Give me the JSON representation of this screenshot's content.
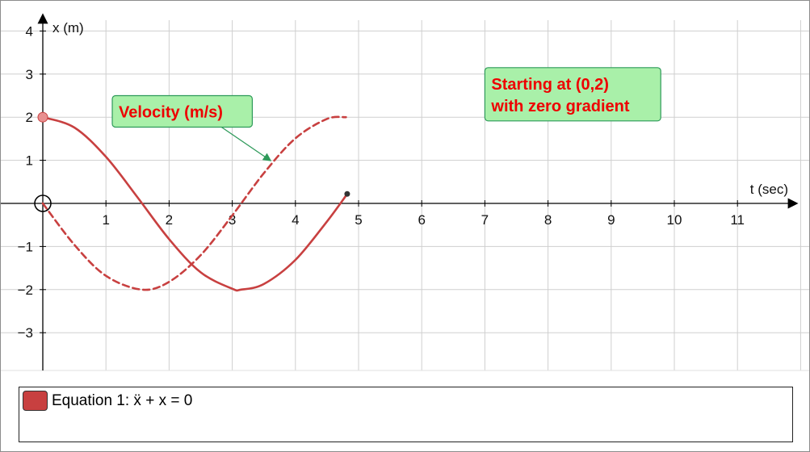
{
  "chart_data": {
    "type": "line",
    "xlabel": "t (sec)",
    "ylabel": "x (m)",
    "xlim": [
      -0.5,
      12
    ],
    "ylim": [
      -3.8,
      4.2
    ],
    "x_ticks": [
      1,
      2,
      3,
      4,
      5,
      6,
      7,
      8,
      9,
      10,
      11
    ],
    "y_ticks": [
      4,
      3,
      2,
      1,
      -1,
      -2,
      -3
    ],
    "y_tick_labels": [
      "4",
      "3",
      "2",
      "1",
      "−1",
      "−2",
      "−3"
    ],
    "grid": true,
    "series": [
      {
        "style": "solid",
        "color": "#c84040",
        "x": [
          0,
          0.5,
          1,
          1.5,
          2,
          2.5,
          3,
          3.14,
          3.5,
          4,
          4.5,
          4.82
        ],
        "y": [
          2,
          1.76,
          1.08,
          0.14,
          -0.83,
          -1.6,
          -1.98,
          -2,
          -1.87,
          -1.31,
          -0.42,
          0.22
        ]
      },
      {
        "style": "dashed",
        "color": "#c84040",
        "x": [
          0,
          0.5,
          1,
          1.57,
          2,
          2.5,
          3,
          3.5,
          4,
          4.5,
          4.8
        ],
        "y": [
          0,
          -0.96,
          -1.68,
          -2,
          -1.82,
          -1.2,
          -0.28,
          0.7,
          1.51,
          1.96,
          2
        ]
      }
    ],
    "points": [
      {
        "name": "start",
        "x": 0,
        "y": 2,
        "color": "#e89090"
      },
      {
        "name": "end",
        "x": 4.82,
        "y": 0.22,
        "color": "#333333"
      }
    ],
    "annotations": [
      {
        "text": [
          "Velocity (m/s)"
        ],
        "box_x": 1.1,
        "box_y": 2.5,
        "arrow_to": [
          3.6,
          1.0
        ]
      },
      {
        "text": [
          "Starting at (0,2)",
          "with zero gradient"
        ],
        "box_x": 7.0,
        "box_y": 3.15
      }
    ]
  },
  "legend": {
    "swatch_color": "#c84040",
    "label": "Equation 1: ẍ + x = 0"
  }
}
